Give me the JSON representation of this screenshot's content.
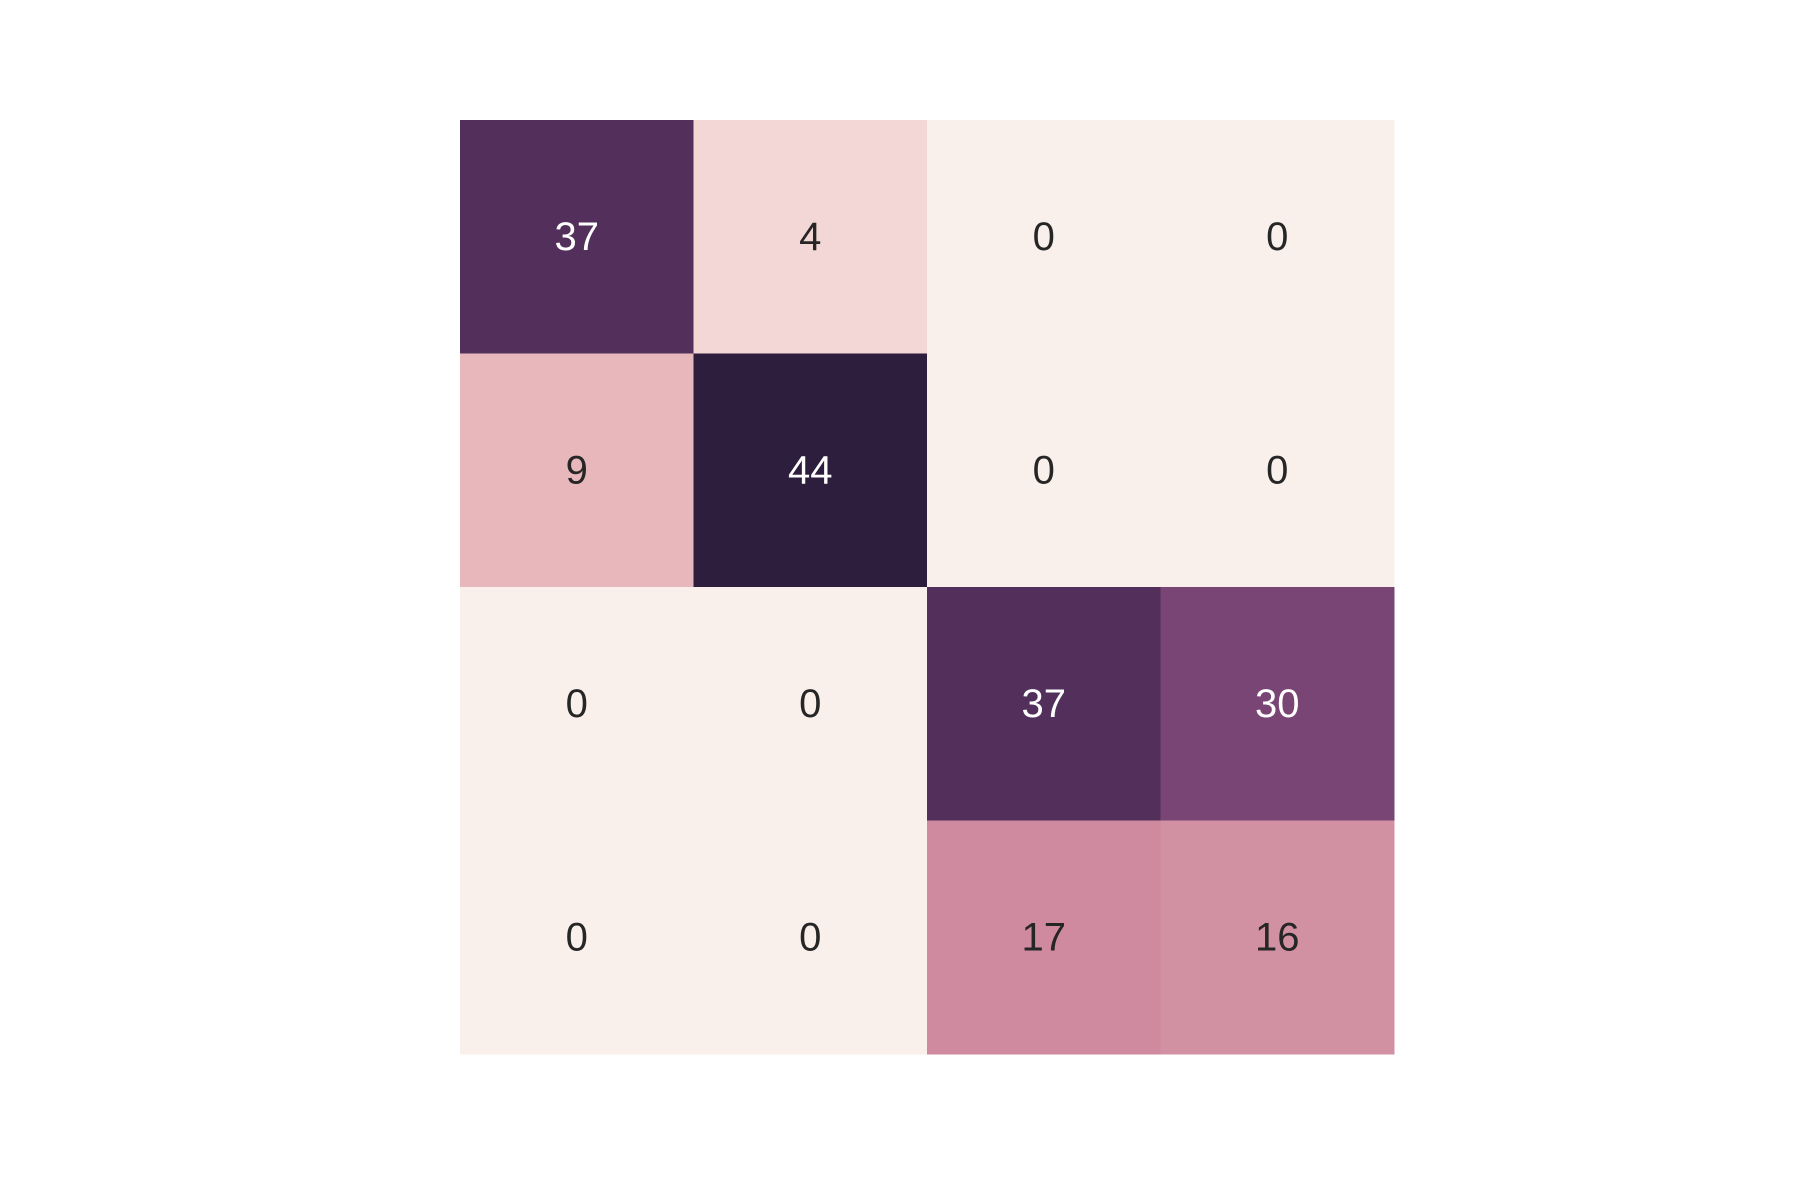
{
  "chart_data": {
    "type": "heatmap",
    "title": "",
    "xlabel": "",
    "ylabel": "",
    "rows": 4,
    "cols": 4,
    "values": [
      [
        37,
        4,
        0,
        0
      ],
      [
        9,
        44,
        0,
        0
      ],
      [
        0,
        0,
        37,
        30
      ],
      [
        0,
        0,
        17,
        16
      ]
    ],
    "value_range": [
      0,
      44
    ],
    "annotated": true,
    "colorbar": false,
    "colormap": [
      "#faf0eb",
      "#e8b8bc",
      "#cd879e",
      "#8b5080",
      "#5c3563",
      "#2d1e3e"
    ],
    "annotation_colors": {
      "light_cell": "#262626",
      "dark_cell": "#ffffff"
    }
  }
}
